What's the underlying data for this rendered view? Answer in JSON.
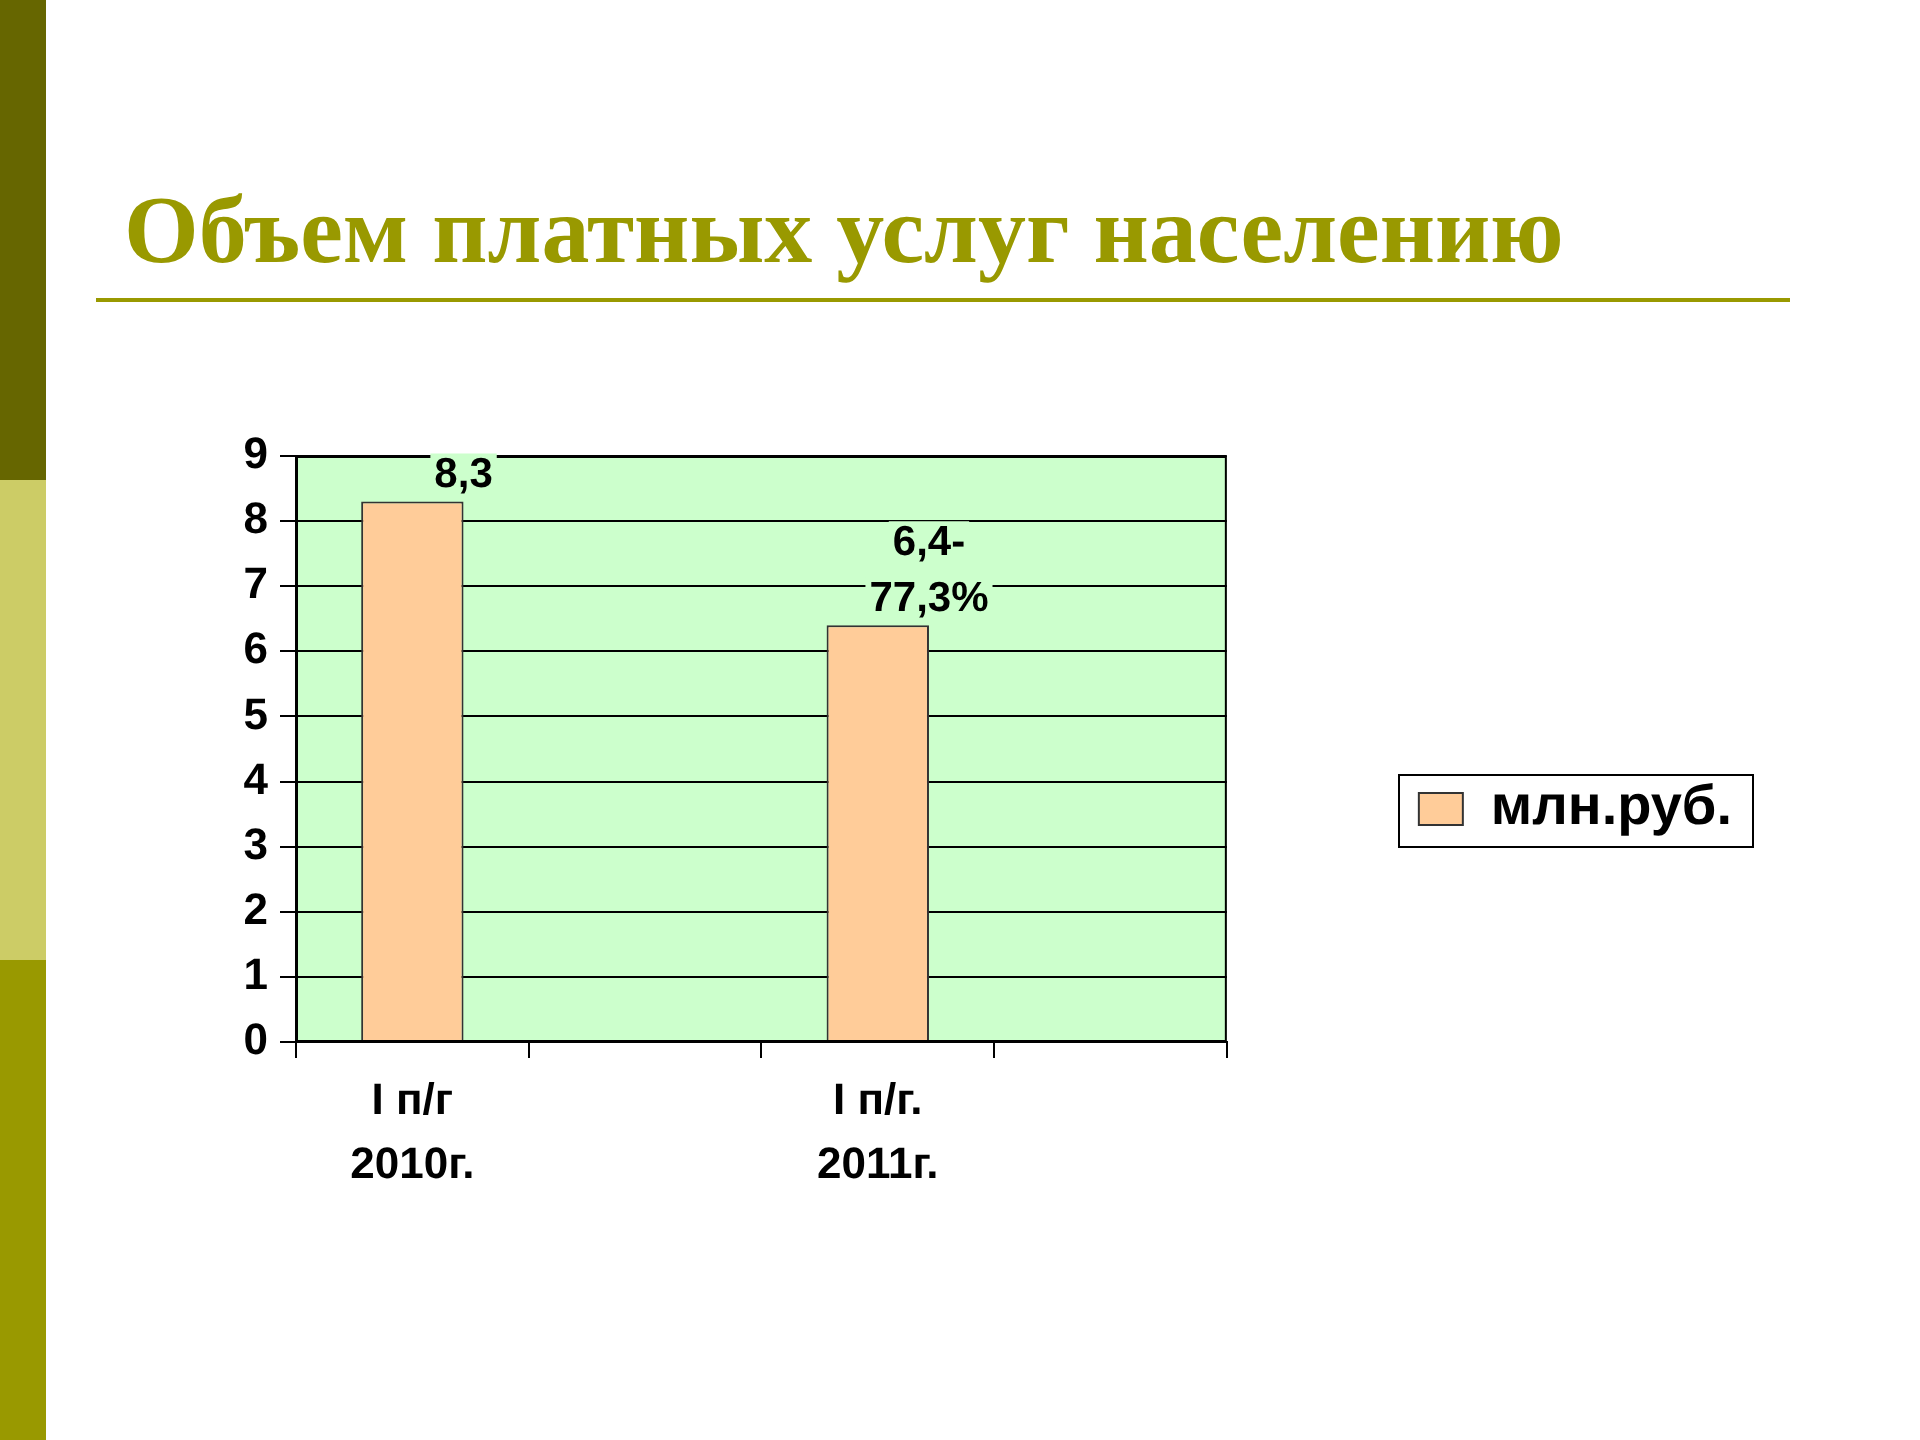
{
  "chart_data": {
    "type": "bar",
    "title": "Объем платных услуг населению",
    "categories": [
      "I п/г 2010г.",
      null,
      "I п/г. 2011г.",
      null
    ],
    "series": [
      {
        "name": "млн.руб.",
        "color": "#ffcc99",
        "values": [
          8.3,
          null,
          6.4,
          null
        ],
        "value_labels": [
          "8,3",
          null,
          "6,4-77,3%",
          null
        ]
      }
    ],
    "ylim": [
      0,
      9
    ],
    "yticks": [
      0,
      1,
      2,
      3,
      4,
      5,
      6,
      7,
      8,
      9
    ],
    "grid": "y",
    "legend": "right"
  }
}
